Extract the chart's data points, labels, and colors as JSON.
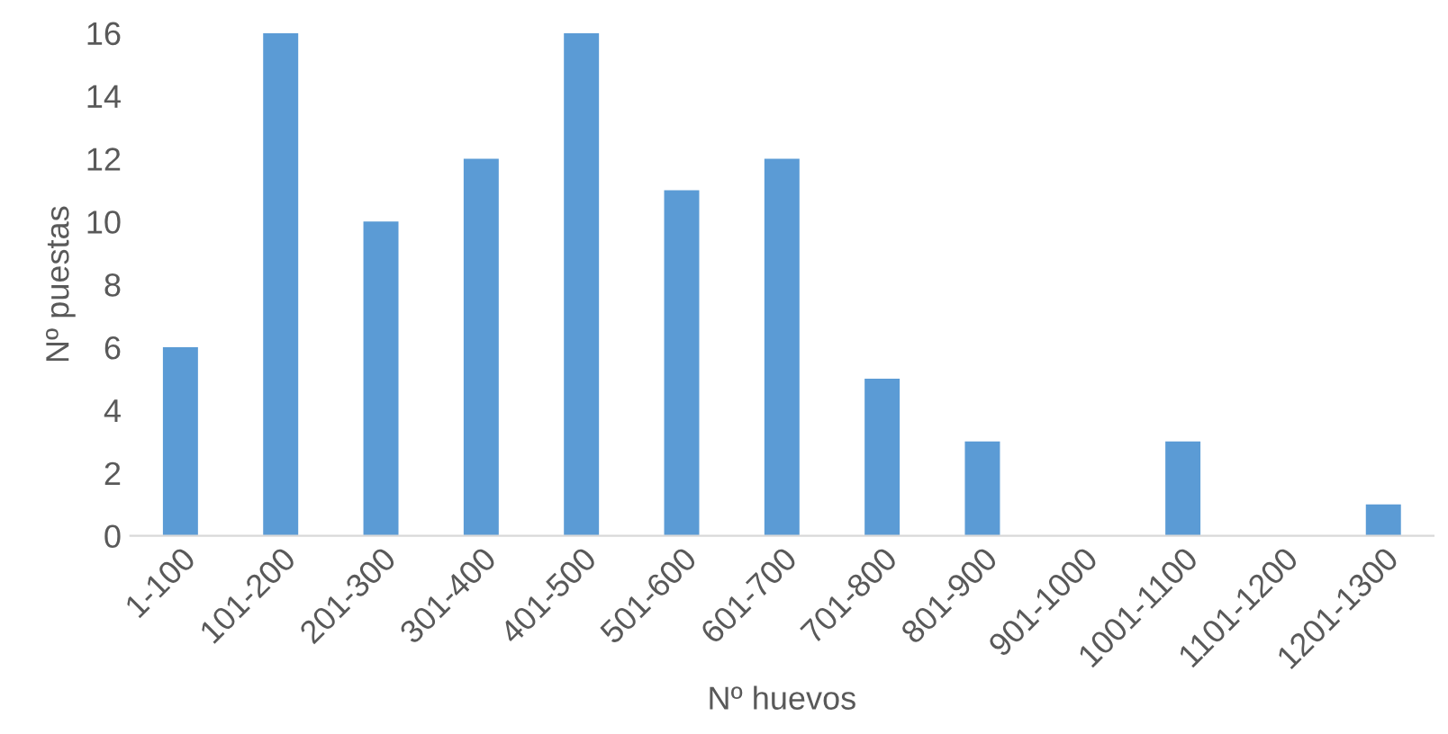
{
  "chart_data": {
    "type": "bar",
    "xlabel": "Nº huevos",
    "ylabel": "Nº puestas",
    "categories": [
      "1-100",
      "101-200",
      "201-300",
      "301-400",
      "401-500",
      "501-600",
      "601-700",
      "701-800",
      "801-900",
      "901-1000",
      "1001-1100",
      "1101-1200",
      "1201-1300"
    ],
    "values": [
      6,
      16,
      10,
      12,
      16,
      11,
      12,
      5,
      3,
      0,
      3,
      0,
      1
    ],
    "color": "#5b9bd5",
    "ylim": [
      0,
      16
    ],
    "yticks": [
      0,
      2,
      4,
      6,
      8,
      10,
      12,
      14,
      16
    ],
    "grid": false
  }
}
